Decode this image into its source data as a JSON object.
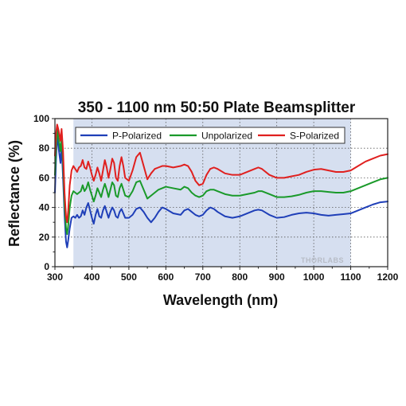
{
  "colors": {
    "p_polarized": "#1f3fb8",
    "unpolarized": "#1a9a2a",
    "s_polarized": "#e0201f",
    "shaded_band": "#d6dff0",
    "grid": "#5a5a5a"
  },
  "watermark": "THORLABS",
  "chart_data": {
    "type": "line",
    "title": "350 - 1100 nm 50:50 Plate Beamsplitter",
    "xlabel": "Wavelength (nm)",
    "ylabel": "Reflectance (%)",
    "xlim": [
      300,
      1200
    ],
    "ylim": [
      0,
      100
    ],
    "x_ticks": [
      300,
      400,
      500,
      600,
      700,
      800,
      900,
      1000,
      1100,
      1200
    ],
    "y_ticks": [
      0,
      20,
      40,
      60,
      80,
      100
    ],
    "x_tick_labels": [
      "300",
      "400",
      "500",
      "600",
      "700",
      "800",
      "900",
      "1000",
      "1100",
      "1200"
    ],
    "y_tick_labels": [
      "0",
      "20",
      "40",
      "60",
      "80",
      "100"
    ],
    "grid": true,
    "shaded_region": [
      350,
      1100
    ],
    "legend_position": "top",
    "series": [
      {
        "name": "P-Polarized",
        "color_key": "p_polarized",
        "points": [
          [
            300,
            50
          ],
          [
            303,
            72
          ],
          [
            306,
            90
          ],
          [
            310,
            80
          ],
          [
            315,
            70
          ],
          [
            318,
            82
          ],
          [
            322,
            60
          ],
          [
            326,
            35
          ],
          [
            330,
            17
          ],
          [
            333,
            13
          ],
          [
            336,
            18
          ],
          [
            340,
            26
          ],
          [
            345,
            33
          ],
          [
            350,
            34
          ],
          [
            355,
            33
          ],
          [
            360,
            35
          ],
          [
            365,
            33
          ],
          [
            370,
            34
          ],
          [
            375,
            38
          ],
          [
            380,
            35
          ],
          [
            385,
            40
          ],
          [
            390,
            43
          ],
          [
            395,
            38
          ],
          [
            400,
            33
          ],
          [
            405,
            29
          ],
          [
            410,
            35
          ],
          [
            415,
            39
          ],
          [
            420,
            34
          ],
          [
            425,
            33
          ],
          [
            430,
            38
          ],
          [
            435,
            41
          ],
          [
            440,
            37
          ],
          [
            445,
            33
          ],
          [
            450,
            37
          ],
          [
            455,
            40
          ],
          [
            460,
            38
          ],
          [
            465,
            34
          ],
          [
            470,
            33
          ],
          [
            475,
            37
          ],
          [
            480,
            39
          ],
          [
            485,
            36
          ],
          [
            490,
            33
          ],
          [
            500,
            33
          ],
          [
            510,
            35
          ],
          [
            520,
            39
          ],
          [
            530,
            40
          ],
          [
            540,
            37
          ],
          [
            550,
            33
          ],
          [
            560,
            30
          ],
          [
            570,
            33
          ],
          [
            580,
            37
          ],
          [
            590,
            40
          ],
          [
            600,
            39
          ],
          [
            620,
            36
          ],
          [
            640,
            35
          ],
          [
            650,
            38
          ],
          [
            660,
            39
          ],
          [
            670,
            37
          ],
          [
            680,
            35
          ],
          [
            690,
            34
          ],
          [
            700,
            35
          ],
          [
            710,
            38
          ],
          [
            720,
            40
          ],
          [
            730,
            39
          ],
          [
            740,
            37
          ],
          [
            760,
            34
          ],
          [
            780,
            33
          ],
          [
            800,
            34
          ],
          [
            820,
            36
          ],
          [
            840,
            38
          ],
          [
            850,
            38.5
          ],
          [
            860,
            38
          ],
          [
            880,
            35
          ],
          [
            900,
            33
          ],
          [
            920,
            33.5
          ],
          [
            940,
            35
          ],
          [
            960,
            36
          ],
          [
            980,
            36.5
          ],
          [
            1000,
            36
          ],
          [
            1020,
            35
          ],
          [
            1040,
            34.5
          ],
          [
            1060,
            35
          ],
          [
            1080,
            35.5
          ],
          [
            1100,
            36
          ],
          [
            1120,
            38
          ],
          [
            1140,
            40
          ],
          [
            1160,
            42
          ],
          [
            1180,
            43.5
          ],
          [
            1200,
            44
          ]
        ]
      },
      {
        "name": "Unpolarized",
        "color_key": "unpolarized",
        "points": [
          [
            300,
            62
          ],
          [
            303,
            80
          ],
          [
            306,
            93
          ],
          [
            310,
            86
          ],
          [
            315,
            78
          ],
          [
            318,
            88
          ],
          [
            322,
            70
          ],
          [
            326,
            42
          ],
          [
            330,
            26
          ],
          [
            333,
            22
          ],
          [
            336,
            28
          ],
          [
            340,
            40
          ],
          [
            345,
            48
          ],
          [
            350,
            51
          ],
          [
            355,
            50
          ],
          [
            360,
            49
          ],
          [
            365,
            50
          ],
          [
            370,
            51
          ],
          [
            375,
            55
          ],
          [
            380,
            51
          ],
          [
            385,
            53
          ],
          [
            390,
            57
          ],
          [
            395,
            52
          ],
          [
            400,
            48
          ],
          [
            405,
            44
          ],
          [
            410,
            48
          ],
          [
            415,
            53
          ],
          [
            420,
            50
          ],
          [
            425,
            47
          ],
          [
            430,
            52
          ],
          [
            435,
            56
          ],
          [
            440,
            52
          ],
          [
            445,
            47
          ],
          [
            450,
            52
          ],
          [
            455,
            57
          ],
          [
            460,
            55
          ],
          [
            465,
            48
          ],
          [
            470,
            47
          ],
          [
            475,
            53
          ],
          [
            480,
            56
          ],
          [
            485,
            52
          ],
          [
            490,
            48
          ],
          [
            500,
            47
          ],
          [
            510,
            51
          ],
          [
            520,
            57
          ],
          [
            530,
            58
          ],
          [
            540,
            52
          ],
          [
            550,
            46
          ],
          [
            560,
            48
          ],
          [
            570,
            50
          ],
          [
            580,
            52
          ],
          [
            590,
            53
          ],
          [
            600,
            54
          ],
          [
            620,
            53
          ],
          [
            640,
            52
          ],
          [
            650,
            54
          ],
          [
            660,
            53
          ],
          [
            670,
            50
          ],
          [
            680,
            48
          ],
          [
            690,
            47
          ],
          [
            700,
            48
          ],
          [
            710,
            51
          ],
          [
            720,
            52
          ],
          [
            730,
            52
          ],
          [
            740,
            51
          ],
          [
            760,
            49
          ],
          [
            780,
            48
          ],
          [
            800,
            48
          ],
          [
            820,
            49
          ],
          [
            840,
            50
          ],
          [
            850,
            51
          ],
          [
            860,
            51
          ],
          [
            880,
            49
          ],
          [
            900,
            47
          ],
          [
            920,
            47
          ],
          [
            940,
            47.5
          ],
          [
            960,
            48.5
          ],
          [
            980,
            50
          ],
          [
            1000,
            51
          ],
          [
            1020,
            51
          ],
          [
            1040,
            50.5
          ],
          [
            1060,
            50
          ],
          [
            1080,
            50
          ],
          [
            1100,
            51
          ],
          [
            1120,
            53
          ],
          [
            1140,
            55
          ],
          [
            1160,
            57
          ],
          [
            1180,
            59
          ],
          [
            1200,
            60
          ]
        ]
      },
      {
        "name": "S-Polarized",
        "color_key": "s_polarized",
        "points": [
          [
            300,
            75
          ],
          [
            303,
            90
          ],
          [
            306,
            96
          ],
          [
            310,
            92
          ],
          [
            315,
            85
          ],
          [
            318,
            93
          ],
          [
            322,
            78
          ],
          [
            326,
            50
          ],
          [
            330,
            34
          ],
          [
            333,
            30
          ],
          [
            336,
            38
          ],
          [
            340,
            55
          ],
          [
            345,
            65
          ],
          [
            350,
            68
          ],
          [
            355,
            66
          ],
          [
            360,
            64
          ],
          [
            365,
            67
          ],
          [
            370,
            68
          ],
          [
            375,
            72
          ],
          [
            380,
            67
          ],
          [
            385,
            66
          ],
          [
            390,
            71
          ],
          [
            395,
            67
          ],
          [
            400,
            62
          ],
          [
            405,
            58
          ],
          [
            410,
            62
          ],
          [
            415,
            67
          ],
          [
            420,
            63
          ],
          [
            425,
            58
          ],
          [
            430,
            65
          ],
          [
            435,
            72
          ],
          [
            440,
            67
          ],
          [
            445,
            60
          ],
          [
            450,
            66
          ],
          [
            455,
            73
          ],
          [
            460,
            70
          ],
          [
            465,
            60
          ],
          [
            470,
            58
          ],
          [
            475,
            68
          ],
          [
            480,
            74
          ],
          [
            485,
            68
          ],
          [
            490,
            60
          ],
          [
            500,
            58
          ],
          [
            510,
            65
          ],
          [
            520,
            74
          ],
          [
            530,
            77
          ],
          [
            540,
            68
          ],
          [
            550,
            59
          ],
          [
            560,
            63
          ],
          [
            570,
            66
          ],
          [
            580,
            67
          ],
          [
            590,
            68
          ],
          [
            600,
            68
          ],
          [
            620,
            67
          ],
          [
            640,
            68
          ],
          [
            650,
            69
          ],
          [
            660,
            68
          ],
          [
            670,
            64
          ],
          [
            680,
            58
          ],
          [
            690,
            55
          ],
          [
            700,
            56
          ],
          [
            710,
            62
          ],
          [
            720,
            66
          ],
          [
            730,
            67
          ],
          [
            740,
            66
          ],
          [
            760,
            63
          ],
          [
            780,
            62
          ],
          [
            800,
            62
          ],
          [
            820,
            64
          ],
          [
            840,
            66
          ],
          [
            850,
            67
          ],
          [
            860,
            66
          ],
          [
            880,
            62
          ],
          [
            900,
            60
          ],
          [
            920,
            60
          ],
          [
            940,
            61
          ],
          [
            960,
            62
          ],
          [
            980,
            64
          ],
          [
            1000,
            65.5
          ],
          [
            1020,
            66
          ],
          [
            1040,
            65
          ],
          [
            1060,
            64
          ],
          [
            1080,
            64
          ],
          [
            1100,
            65
          ],
          [
            1120,
            68
          ],
          [
            1140,
            71
          ],
          [
            1160,
            73
          ],
          [
            1180,
            75
          ],
          [
            1200,
            76
          ]
        ]
      }
    ]
  }
}
